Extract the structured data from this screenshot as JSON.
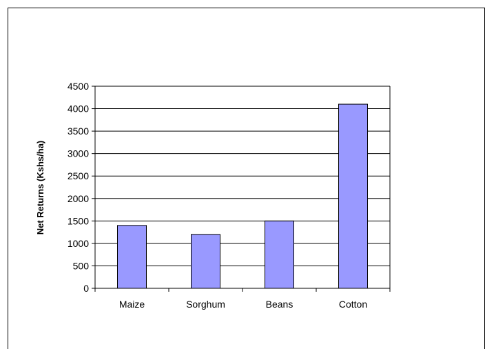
{
  "chart_data": {
    "type": "bar",
    "title": "",
    "xlabel": "",
    "ylabel": "Net Returns (Kshs/ha)",
    "categories": [
      "Maize",
      "Sorghum",
      "Beans",
      "Cotton"
    ],
    "values": [
      1400,
      1200,
      1500,
      4100
    ],
    "ylim": [
      0,
      4500
    ],
    "yticks": [
      0,
      500,
      1000,
      1500,
      2000,
      2500,
      3000,
      3500,
      4000,
      4500
    ],
    "grid": true,
    "legend": "none",
    "bar_color": "#9999ff",
    "bar_edge_color": "#000000",
    "gridline_color": "#000000"
  }
}
